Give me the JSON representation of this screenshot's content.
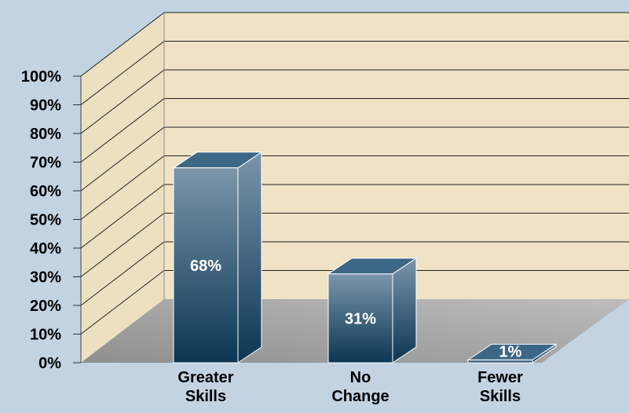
{
  "chart_data": {
    "type": "bar",
    "categories": [
      "Greater Skills",
      "No Change",
      "Fewer Skills"
    ],
    "category_lines": [
      [
        "Greater",
        "Skills"
      ],
      [
        "No",
        "Change"
      ],
      [
        "Fewer",
        "Skills"
      ]
    ],
    "values": [
      68,
      31,
      1
    ],
    "data_labels": [
      "68%",
      "31%",
      "1%"
    ],
    "ylim": [
      0,
      100
    ],
    "yticks": [
      "0%",
      "10%",
      "20%",
      "30%",
      "40%",
      "50%",
      "60%",
      "70%",
      "80%",
      "90%",
      "100%"
    ],
    "grid": true,
    "legend": "none",
    "colors": {
      "background": "#c3d3e2",
      "back_wall": "#f0e3c5",
      "side_wall": "#ede0c0",
      "floor": "#aaaaaa",
      "bar_light": "#7a96ac",
      "bar_dark": "#0b3552",
      "bar_top": "#3c6785",
      "label_text": "#ffffff",
      "axis_text": "#000000"
    }
  }
}
